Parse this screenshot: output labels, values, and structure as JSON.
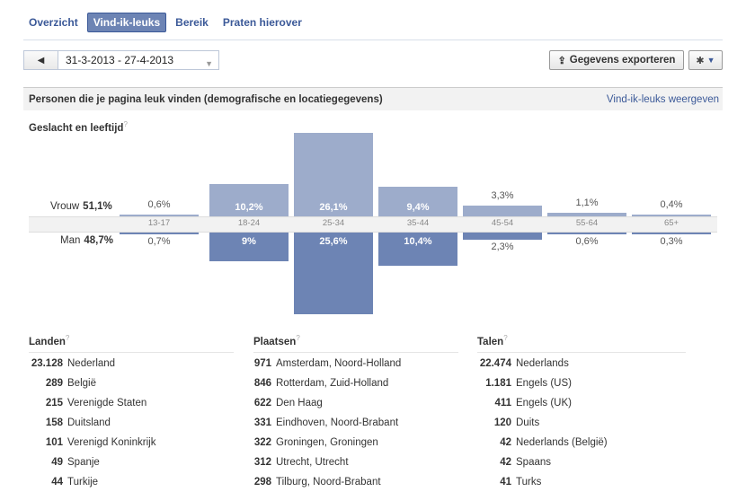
{
  "tabs": [
    {
      "label": "Overzicht",
      "active": false
    },
    {
      "label": "Vind-ik-leuks",
      "active": true
    },
    {
      "label": "Bereik",
      "active": false
    },
    {
      "label": "Praten hierover",
      "active": false
    }
  ],
  "toolbar": {
    "date_range": "31-3-2013 - 27-4-2013",
    "export_label": "Gegevens exporteren"
  },
  "section": {
    "title": "Personen die je pagina leuk vinden (demografische en locatiegegevens)",
    "link": "Vind-ik-leuks weergeven"
  },
  "gender_age": {
    "title": "Geslacht en leeftijd",
    "qmark": "?",
    "female_label": "Vrouw",
    "female_total": "51,1%",
    "male_label": "Man",
    "male_total": "48,7%"
  },
  "chart_data": {
    "type": "bar",
    "categories": [
      "13-17",
      "18-24",
      "25-34",
      "35-44",
      "45-54",
      "55-64",
      "65+"
    ],
    "series": [
      {
        "name": "Vrouw",
        "values": [
          0.6,
          10.2,
          26.1,
          9.4,
          3.3,
          1.1,
          0.4
        ],
        "labels": [
          "0,6%",
          "10,2%",
          "26,1%",
          "9,4%",
          "3,3%",
          "1,1%",
          "0,4%"
        ],
        "color": "#9daccb"
      },
      {
        "name": "Man",
        "values": [
          0.7,
          9.0,
          25.6,
          10.4,
          2.3,
          0.6,
          0.3
        ],
        "labels": [
          "0,7%",
          "9%",
          "25,6%",
          "10,4%",
          "2,3%",
          "0,6%",
          "0,3%"
        ],
        "color": "#6d84b4"
      }
    ]
  },
  "countries": {
    "title": "Landen",
    "qmark": "?",
    "items": [
      {
        "count": "23.128",
        "name": "Nederland"
      },
      {
        "count": "289",
        "name": "België"
      },
      {
        "count": "215",
        "name": "Verenigde Staten"
      },
      {
        "count": "158",
        "name": "Duitsland"
      },
      {
        "count": "101",
        "name": "Verenigd Koninkrijk"
      },
      {
        "count": "49",
        "name": "Spanje"
      },
      {
        "count": "44",
        "name": "Turkije"
      }
    ]
  },
  "cities": {
    "title": "Plaatsen",
    "qmark": "?",
    "items": [
      {
        "count": "971",
        "name": "Amsterdam, Noord-Holland"
      },
      {
        "count": "846",
        "name": "Rotterdam, Zuid-Holland"
      },
      {
        "count": "622",
        "name": "Den Haag"
      },
      {
        "count": "331",
        "name": "Eindhoven, Noord-Brabant"
      },
      {
        "count": "322",
        "name": "Groningen, Groningen"
      },
      {
        "count": "312",
        "name": "Utrecht, Utrecht"
      },
      {
        "count": "298",
        "name": "Tilburg, Noord-Brabant"
      }
    ]
  },
  "languages": {
    "title": "Talen",
    "qmark": "?",
    "items": [
      {
        "count": "22.474",
        "name": "Nederlands"
      },
      {
        "count": "1.181",
        "name": "Engels (US)"
      },
      {
        "count": "411",
        "name": "Engels (UK)"
      },
      {
        "count": "120",
        "name": "Duits"
      },
      {
        "count": "42",
        "name": "Nederlands (België)"
      },
      {
        "count": "42",
        "name": "Spaans"
      },
      {
        "count": "41",
        "name": "Turks"
      }
    ]
  },
  "icons": {
    "prev": "triangle-left-icon",
    "export": "upload-icon",
    "gear": "gear-icon",
    "caret": "caret-down-icon"
  }
}
